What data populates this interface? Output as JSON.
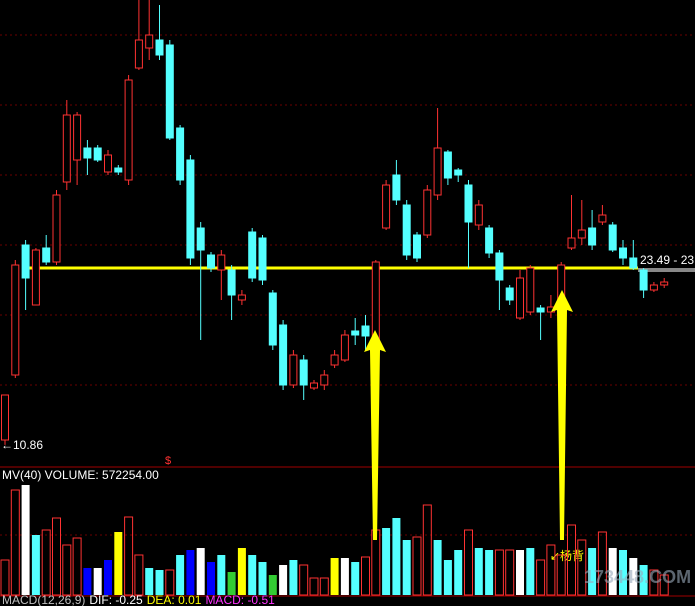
{
  "chart_data": [
    {
      "type": "candlestick",
      "ylim": [
        9.31,
        42
      ],
      "up_color": "#ff3232",
      "down_color": "#54ffff",
      "open": [
        11.2,
        15.75,
        24.85,
        20.65,
        24.64,
        23.66,
        29.26,
        30.8,
        31.64,
        31.64,
        29.96,
        30.24,
        29.4,
        37.24,
        38.64,
        39.2,
        38.85,
        33.04,
        30.8,
        26.04,
        24.15,
        23.1,
        23.1,
        21,
        25.76,
        25.34,
        21.49,
        19.25,
        15.05,
        16.8,
        14.84,
        15.05,
        16.45,
        16.8,
        18.83,
        19.18,
        17.85,
        26.04,
        29.75,
        27.65,
        25.55,
        25.55,
        28.35,
        31.36,
        30.1,
        29.05,
        26.25,
        26.04,
        24.29,
        21.84,
        19.74,
        20.16,
        20.44,
        20.16,
        20.65,
        24.64,
        25.34,
        26.04,
        26.46,
        26.25,
        24.64,
        23.94,
        23.1,
        21.7,
        22.05
      ],
      "high": [
        14.35,
        23.8,
        25.2,
        24.64,
        25.55,
        28.7,
        35,
        34.16,
        32.2,
        31.85,
        31.5,
        30.45,
        36.75,
        42,
        42,
        41.65,
        39.2,
        33.25,
        31.15,
        26.46,
        24.36,
        24.5,
        23.45,
        21.7,
        26.04,
        25.55,
        21.7,
        19.6,
        17.5,
        17.15,
        15.4,
        16.1,
        17.5,
        18.9,
        19.74,
        19.95,
        23.8,
        29.4,
        30.8,
        28,
        25.76,
        29.05,
        34.44,
        31.5,
        30.24,
        29.4,
        28,
        26.25,
        24.5,
        22.05,
        23.1,
        23.45,
        20.65,
        21.35,
        23.66,
        28.35,
        28,
        27.3,
        27.65,
        26.46,
        25.2,
        25.2,
        23.24,
        22.26,
        22.54
      ],
      "low": [
        10.86,
        15.54,
        20.3,
        20.65,
        23.45,
        23.45,
        28.7,
        29.05,
        29.75,
        30.66,
        29.75,
        29.75,
        29.05,
        37.1,
        37.8,
        37.8,
        32.2,
        29.05,
        23.45,
        18.2,
        22.96,
        21,
        19.6,
        20.65,
        22.26,
        22.05,
        17.5,
        14.7,
        14.84,
        14,
        14.7,
        14.7,
        16.24,
        16.66,
        17.85,
        17.5,
        17.64,
        25.9,
        27.65,
        23.8,
        23.66,
        25.34,
        28,
        29.05,
        29.26,
        23.24,
        25.9,
        23.94,
        20.3,
        20.65,
        19.6,
        19.95,
        18.2,
        19.74,
        20.44,
        24.5,
        24.85,
        24.5,
        26.25,
        24.36,
        23.45,
        23.1,
        21.14,
        21.56,
        21.84
      ],
      "close": [
        14.35,
        23.45,
        22.54,
        24.5,
        23.66,
        28.35,
        33.95,
        33.95,
        30.94,
        30.8,
        31.15,
        29.96,
        36.4,
        39.2,
        39.55,
        38.15,
        32.34,
        29.4,
        23.94,
        24.5,
        23.24,
        24.15,
        21.35,
        21.35,
        22.54,
        22.4,
        17.85,
        15.05,
        17.15,
        15.05,
        15.19,
        15.75,
        17.15,
        18.55,
        18.55,
        18.48,
        23.66,
        29.05,
        28,
        24.15,
        23.94,
        28.7,
        31.64,
        29.54,
        29.75,
        26.46,
        27.65,
        24.29,
        22.4,
        21,
        22.54,
        23.24,
        20.16,
        20.51,
        23.45,
        25.34,
        25.9,
        24.85,
        26.95,
        24.5,
        23.94,
        23.24,
        21.7,
        22.05,
        22.26
      ],
      "hline": {
        "value": 23.24,
        "color": "#ffff00"
      },
      "low_label": "←10.86",
      "price_label": "23.49 - 23.",
      "marker": "$",
      "note": "↙杨背"
    },
    {
      "type": "bar",
      "title": "MV(40) VOLUME: 572254.00",
      "ylim": [
        0,
        3289000
      ],
      "values": [
        1001000,
        3003000,
        3146000,
        1716000,
        1859000,
        2202200,
        1430000,
        1630200,
        772200,
        772200,
        1001000,
        1801800,
        2230800,
        1144000,
        772200,
        715000,
        715000,
        1144000,
        1287000,
        1344200,
        943800,
        1144000,
        657800,
        1344200,
        1144000,
        943800,
        572000,
        858000,
        1001000,
        858000,
        486200,
        486200,
        1058200,
        1058200,
        943800,
        1086800,
        1859000,
        1916200,
        2202200,
        1573000,
        1658800,
        2574000,
        1573000,
        1001000,
        1287000,
        1859000,
        1344200,
        1287000,
        1287000,
        1287000,
        1287000,
        1344200,
        1001000,
        1430000,
        1144000,
        2002000,
        1573000,
        1344200,
        1801800,
        1344200,
        1287000,
        1058200,
        858000,
        715000,
        572254
      ],
      "colors": [
        "#ff3232",
        "#ff3232",
        "#ffffff",
        "#54ffff",
        "#ff3232",
        "#ff3232",
        "#ff3232",
        "#ff3232",
        "#0000ff",
        "#ffffff",
        "#0000ff",
        "#ffff00",
        "#ff3232",
        "#ff3232",
        "#54ffff",
        "#54ffff",
        "#ff3232",
        "#54ffff",
        "#0000ff",
        "#ffffff",
        "#0000ff",
        "#54ffff",
        "#33cc33",
        "#ffff00",
        "#54ffff",
        "#54ffff",
        "#33cc33",
        "#ffffff",
        "#54ffff",
        "#ff3232",
        "#ff3232",
        "#ff3232",
        "#ffff00",
        "#ffffff",
        "#54ffff",
        "#ff3232",
        "#ff3232",
        "#54ffff",
        "#54ffff",
        "#54ffff",
        "#ff3232",
        "#ff3232",
        "#54ffff",
        "#54ffff",
        "#54ffff",
        "#ff3232",
        "#54ffff",
        "#54ffff",
        "#ff3232",
        "#ff3232",
        "#ffffff",
        "#54ffff",
        "#ff3232",
        "#ff3232",
        "#ff3232",
        "#ff3232",
        "#ff3232",
        "#54ffff",
        "#ff3232",
        "#ffffff",
        "#54ffff",
        "#ffffff",
        "#54ffff",
        "#ff3232",
        "#ff3232"
      ]
    }
  ],
  "macd_legend": [
    {
      "text": "MACD(12,26,9)",
      "color": "#c0c0c0"
    },
    {
      "text": "DIF: -0.25",
      "color": "#ffffff"
    },
    {
      "text": "DEA: 0.01",
      "color": "#ffff00"
    },
    {
      "text": "MACD: -0.51",
      "color": "#ff33ff"
    }
  ],
  "watermark": "173448.COM"
}
